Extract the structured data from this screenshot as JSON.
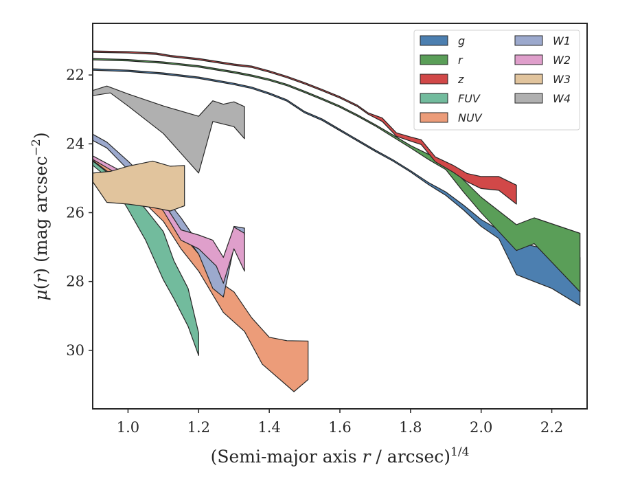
{
  "chart_data": {
    "type": "area",
    "xlabel": "(Semi-major axis r / arcsec)^{1/4}",
    "ylabel": "μ(r) (mag arcsec^{−2})",
    "xlim": [
      0.9,
      2.3
    ],
    "ylim": [
      31.7,
      20.5
    ],
    "y_inverted": true,
    "xticks": [
      "1.0",
      "1.2",
      "1.4",
      "1.6",
      "1.8",
      "2.0",
      "2.2"
    ],
    "yticks": [
      "22",
      "24",
      "26",
      "28",
      "30"
    ],
    "legend": {
      "position": "top-right",
      "columns": 2
    },
    "series": [
      {
        "name": "g",
        "color": "#4c7fb0",
        "upper": [
          [
            0.9,
            21.82
          ],
          [
            1.0,
            21.86
          ],
          [
            1.1,
            21.94
          ],
          [
            1.2,
            22.06
          ],
          [
            1.3,
            22.24
          ],
          [
            1.35,
            22.35
          ],
          [
            1.4,
            22.52
          ],
          [
            1.45,
            22.72
          ],
          [
            1.5,
            23.06
          ],
          [
            1.55,
            23.28
          ],
          [
            1.6,
            23.58
          ],
          [
            1.65,
            23.88
          ],
          [
            1.7,
            24.18
          ],
          [
            1.75,
            24.46
          ],
          [
            1.8,
            24.78
          ],
          [
            1.85,
            25.12
          ],
          [
            1.9,
            25.4
          ],
          [
            1.95,
            25.78
          ],
          [
            2.0,
            26.2
          ],
          [
            2.05,
            26.5
          ],
          [
            2.1,
            26.85
          ],
          [
            2.2,
            27.1
          ],
          [
            2.28,
            27.3
          ]
        ],
        "lower": [
          [
            0.9,
            21.86
          ],
          [
            1.0,
            21.9
          ],
          [
            1.1,
            21.98
          ],
          [
            1.2,
            22.1
          ],
          [
            1.3,
            22.28
          ],
          [
            1.35,
            22.39
          ],
          [
            1.4,
            22.56
          ],
          [
            1.45,
            22.76
          ],
          [
            1.5,
            23.1
          ],
          [
            1.55,
            23.32
          ],
          [
            1.6,
            23.62
          ],
          [
            1.65,
            23.92
          ],
          [
            1.7,
            24.22
          ],
          [
            1.75,
            24.5
          ],
          [
            1.8,
            24.82
          ],
          [
            1.85,
            25.18
          ],
          [
            1.9,
            25.5
          ],
          [
            1.95,
            25.92
          ],
          [
            2.0,
            26.4
          ],
          [
            2.05,
            26.75
          ],
          [
            2.1,
            27.8
          ],
          [
            2.2,
            28.2
          ],
          [
            2.28,
            28.7
          ]
        ]
      },
      {
        "name": "r",
        "color": "#5a9e58",
        "upper": [
          [
            0.9,
            21.52
          ],
          [
            1.0,
            21.55
          ],
          [
            1.1,
            21.62
          ],
          [
            1.2,
            21.73
          ],
          [
            1.3,
            21.9
          ],
          [
            1.35,
            22.0
          ],
          [
            1.4,
            22.12
          ],
          [
            1.45,
            22.27
          ],
          [
            1.5,
            22.47
          ],
          [
            1.55,
            22.68
          ],
          [
            1.6,
            22.9
          ],
          [
            1.65,
            23.16
          ],
          [
            1.7,
            23.44
          ],
          [
            1.75,
            23.74
          ],
          [
            1.8,
            24.05
          ],
          [
            1.85,
            24.3
          ],
          [
            1.9,
            24.55
          ],
          [
            1.95,
            25.05
          ],
          [
            2.0,
            25.55
          ],
          [
            2.05,
            25.95
          ],
          [
            2.1,
            26.35
          ],
          [
            2.15,
            26.15
          ],
          [
            2.28,
            26.6
          ]
        ],
        "lower": [
          [
            0.9,
            21.56
          ],
          [
            1.0,
            21.59
          ],
          [
            1.1,
            21.66
          ],
          [
            1.2,
            21.77
          ],
          [
            1.3,
            21.94
          ],
          [
            1.35,
            22.04
          ],
          [
            1.4,
            22.16
          ],
          [
            1.45,
            22.31
          ],
          [
            1.5,
            22.51
          ],
          [
            1.55,
            22.72
          ],
          [
            1.6,
            22.94
          ],
          [
            1.65,
            23.2
          ],
          [
            1.7,
            23.48
          ],
          [
            1.75,
            23.8
          ],
          [
            1.8,
            24.12
          ],
          [
            1.85,
            24.45
          ],
          [
            1.9,
            24.75
          ],
          [
            1.95,
            25.4
          ],
          [
            2.0,
            26.0
          ],
          [
            2.05,
            26.55
          ],
          [
            2.1,
            27.1
          ],
          [
            2.15,
            26.9
          ],
          [
            2.28,
            28.3
          ]
        ]
      },
      {
        "name": "z",
        "color": "#d14848",
        "upper": [
          [
            0.9,
            21.3
          ],
          [
            1.0,
            21.32
          ],
          [
            1.08,
            21.36
          ],
          [
            1.12,
            21.43
          ],
          [
            1.2,
            21.52
          ],
          [
            1.3,
            21.68
          ],
          [
            1.35,
            21.74
          ],
          [
            1.4,
            21.88
          ],
          [
            1.45,
            22.04
          ],
          [
            1.5,
            22.22
          ],
          [
            1.55,
            22.42
          ],
          [
            1.6,
            22.63
          ],
          [
            1.65,
            22.88
          ],
          [
            1.68,
            23.1
          ],
          [
            1.72,
            23.25
          ],
          [
            1.76,
            23.68
          ],
          [
            1.8,
            23.8
          ],
          [
            1.83,
            23.88
          ],
          [
            1.87,
            24.38
          ],
          [
            1.92,
            24.62
          ],
          [
            1.96,
            24.86
          ],
          [
            2.0,
            24.95
          ],
          [
            2.05,
            24.95
          ],
          [
            2.1,
            25.2
          ]
        ],
        "lower": [
          [
            0.9,
            21.34
          ],
          [
            1.0,
            21.36
          ],
          [
            1.08,
            21.4
          ],
          [
            1.12,
            21.47
          ],
          [
            1.2,
            21.56
          ],
          [
            1.3,
            21.72
          ],
          [
            1.35,
            21.78
          ],
          [
            1.4,
            21.92
          ],
          [
            1.45,
            22.08
          ],
          [
            1.5,
            22.26
          ],
          [
            1.55,
            22.46
          ],
          [
            1.6,
            22.67
          ],
          [
            1.65,
            22.92
          ],
          [
            1.68,
            23.14
          ],
          [
            1.72,
            23.35
          ],
          [
            1.76,
            23.78
          ],
          [
            1.8,
            23.92
          ],
          [
            1.83,
            24.02
          ],
          [
            1.87,
            24.52
          ],
          [
            1.92,
            24.82
          ],
          [
            1.96,
            25.1
          ],
          [
            2.0,
            25.3
          ],
          [
            2.05,
            25.35
          ],
          [
            2.1,
            25.75
          ]
        ]
      },
      {
        "name": "FUV",
        "color": "#72bb9d",
        "upper": [
          [
            0.9,
            24.5
          ],
          [
            0.95,
            24.9
          ],
          [
            1.0,
            25.3
          ],
          [
            1.05,
            25.9
          ],
          [
            1.1,
            26.55
          ],
          [
            1.13,
            27.4
          ],
          [
            1.17,
            28.2
          ],
          [
            1.2,
            29.5
          ]
        ],
        "lower": [
          [
            0.9,
            24.62
          ],
          [
            0.95,
            25.05
          ],
          [
            1.0,
            25.9
          ],
          [
            1.05,
            26.8
          ],
          [
            1.1,
            27.95
          ],
          [
            1.13,
            28.5
          ],
          [
            1.17,
            29.3
          ],
          [
            1.2,
            30.15
          ]
        ]
      },
      {
        "name": "NUV",
        "color": "#ec9c79",
        "upper": [
          [
            0.9,
            24.38
          ],
          [
            1.0,
            25.1
          ],
          [
            1.1,
            25.9
          ],
          [
            1.15,
            26.6
          ],
          [
            1.2,
            27.2
          ],
          [
            1.25,
            27.95
          ],
          [
            1.3,
            28.3
          ],
          [
            1.35,
            29.05
          ],
          [
            1.4,
            29.62
          ],
          [
            1.45,
            29.72
          ],
          [
            1.51,
            29.73
          ]
        ],
        "lower": [
          [
            0.9,
            24.48
          ],
          [
            1.0,
            25.25
          ],
          [
            1.1,
            26.25
          ],
          [
            1.15,
            27.05
          ],
          [
            1.2,
            27.7
          ],
          [
            1.27,
            28.9
          ],
          [
            1.33,
            29.45
          ],
          [
            1.38,
            30.4
          ],
          [
            1.47,
            31.2
          ],
          [
            1.51,
            30.85
          ]
        ]
      },
      {
        "name": "W1",
        "color": "#9ca9cd",
        "upper": [
          [
            0.9,
            23.72
          ],
          [
            0.94,
            23.95
          ],
          [
            1.0,
            24.5
          ],
          [
            1.05,
            25.0
          ],
          [
            1.1,
            25.5
          ],
          [
            1.15,
            26.15
          ],
          [
            1.2,
            26.9
          ],
          [
            1.25,
            27.55
          ],
          [
            1.27,
            27.6
          ],
          [
            1.3,
            26.4
          ],
          [
            1.33,
            26.45
          ]
        ],
        "lower": [
          [
            0.9,
            23.9
          ],
          [
            0.94,
            24.12
          ],
          [
            1.0,
            24.75
          ],
          [
            1.05,
            25.3
          ],
          [
            1.1,
            25.85
          ],
          [
            1.15,
            26.5
          ],
          [
            1.2,
            27.2
          ],
          [
            1.24,
            28.2
          ],
          [
            1.27,
            28.45
          ],
          [
            1.3,
            27.0
          ],
          [
            1.33,
            26.65
          ]
        ]
      },
      {
        "name": "W2",
        "color": "#df9fcb",
        "upper": [
          [
            0.9,
            24.35
          ],
          [
            1.0,
            24.9
          ],
          [
            1.05,
            25.2
          ],
          [
            1.1,
            25.7
          ],
          [
            1.15,
            26.5
          ],
          [
            1.2,
            26.65
          ],
          [
            1.24,
            26.8
          ],
          [
            1.27,
            27.3
          ],
          [
            1.3,
            26.42
          ],
          [
            1.33,
            26.6
          ]
        ],
        "lower": [
          [
            0.9,
            24.45
          ],
          [
            1.0,
            25.05
          ],
          [
            1.05,
            25.45
          ],
          [
            1.1,
            25.95
          ],
          [
            1.15,
            26.8
          ],
          [
            1.2,
            27.05
          ],
          [
            1.25,
            27.55
          ],
          [
            1.27,
            28.05
          ],
          [
            1.3,
            27.05
          ],
          [
            1.33,
            27.7
          ]
        ]
      },
      {
        "name": "W3",
        "color": "#e1c49d",
        "upper": [
          [
            0.9,
            24.85
          ],
          [
            0.95,
            24.8
          ],
          [
            1.0,
            24.65
          ],
          [
            1.07,
            24.5
          ],
          [
            1.12,
            24.65
          ],
          [
            1.16,
            24.63
          ]
        ],
        "lower": [
          [
            0.9,
            25.1
          ],
          [
            0.94,
            25.7
          ],
          [
            1.0,
            25.75
          ],
          [
            1.07,
            25.85
          ],
          [
            1.12,
            25.95
          ],
          [
            1.16,
            25.8
          ]
        ]
      },
      {
        "name": "W4",
        "color": "#b0b0b0",
        "upper": [
          [
            0.9,
            22.45
          ],
          [
            0.94,
            22.32
          ],
          [
            1.0,
            22.55
          ],
          [
            1.1,
            22.9
          ],
          [
            1.2,
            23.2
          ],
          [
            1.24,
            22.75
          ],
          [
            1.27,
            22.85
          ],
          [
            1.3,
            22.78
          ],
          [
            1.33,
            22.92
          ]
        ],
        "lower": [
          [
            0.9,
            22.6
          ],
          [
            0.95,
            22.52
          ],
          [
            1.0,
            22.9
          ],
          [
            1.1,
            23.7
          ],
          [
            1.2,
            24.85
          ],
          [
            1.24,
            23.35
          ],
          [
            1.3,
            23.5
          ],
          [
            1.33,
            23.85
          ]
        ]
      }
    ]
  }
}
